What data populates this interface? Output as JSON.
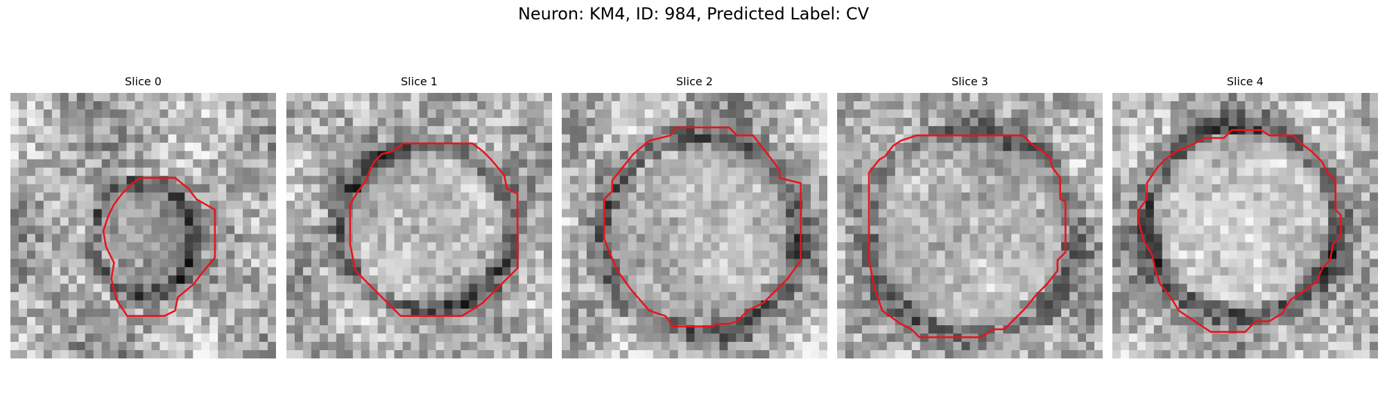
{
  "figure": {
    "title": "Neuron: KM4, ID: 984, Predicted Label: CV"
  },
  "panels": [
    {
      "title": "Slice 0"
    },
    {
      "title": "Slice 1"
    },
    {
      "title": "Slice 2"
    },
    {
      "title": "Slice 3"
    },
    {
      "title": "Slice 4"
    }
  ],
  "colors": {
    "contour": "#e8141c",
    "background": "#ffffff"
  }
}
